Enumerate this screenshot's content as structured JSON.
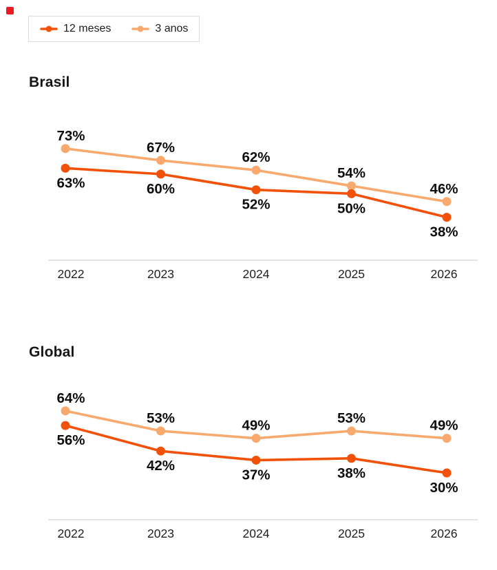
{
  "decorations": {
    "corner_square_color": "#ed1c24"
  },
  "legend": {
    "items": [
      {
        "label": "12 meses",
        "color": "#f25109"
      },
      {
        "label": "3 anos",
        "color": "#f8a96e"
      }
    ]
  },
  "colors": {
    "series_12_meses": "#f25109",
    "series_3_anos": "#f8a96e",
    "axis_line": "#d3d3d3",
    "value_label": "#0d0d0d",
    "year_label": "#1f1f1f"
  },
  "chart_data": [
    {
      "type": "line",
      "title": "Brasil",
      "categories": [
        "2022",
        "2023",
        "2024",
        "2025",
        "2026"
      ],
      "value_suffix": "%",
      "grid": "off",
      "legend_position": "top-left",
      "ylim": [
        25,
        80
      ],
      "series": [
        {
          "name": "12 meses",
          "color": "#f25109",
          "values": [
            63,
            60,
            52,
            50,
            38
          ],
          "label_position": "below"
        },
        {
          "name": "3 anos",
          "color": "#f8a96e",
          "values": [
            73,
            67,
            62,
            54,
            46
          ],
          "label_position": "above"
        }
      ]
    },
    {
      "type": "line",
      "title": "Global",
      "categories": [
        "2022",
        "2023",
        "2024",
        "2025",
        "2026"
      ],
      "value_suffix": "%",
      "grid": "off",
      "legend_position": "top-left",
      "ylim": [
        25,
        70
      ],
      "series": [
        {
          "name": "12 meses",
          "color": "#f25109",
          "values": [
            56,
            42,
            37,
            38,
            30
          ],
          "label_position": "below"
        },
        {
          "name": "3 anos",
          "color": "#f8a96e",
          "values": [
            64,
            53,
            49,
            53,
            49
          ],
          "label_position": "above"
        }
      ]
    }
  ]
}
